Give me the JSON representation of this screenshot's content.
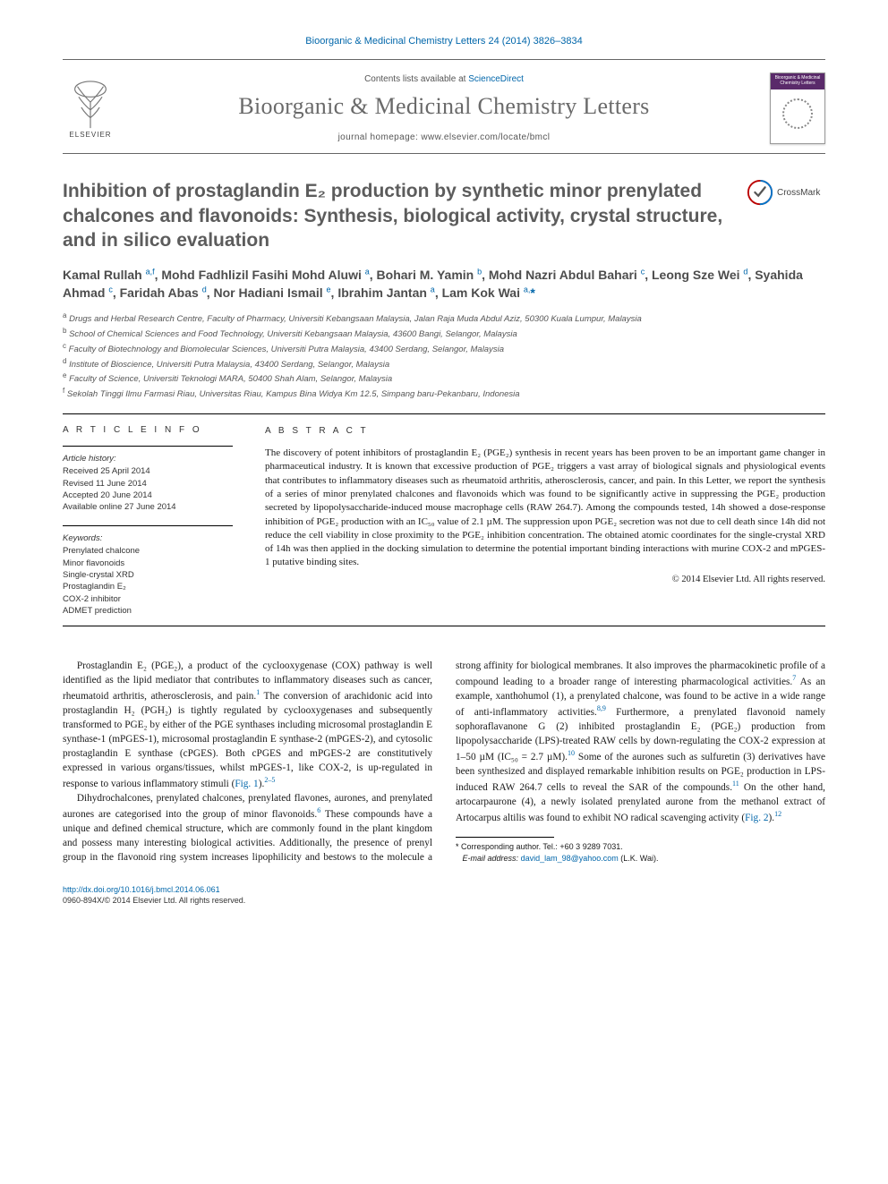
{
  "bibliographic_line": "Bioorganic & Medicinal Chemistry Letters 24 (2014) 3826–3834",
  "header": {
    "contents_prefix": "Contents lists available at ",
    "contents_link": "ScienceDirect",
    "journal_name": "Bioorganic & Medicinal Chemistry Letters",
    "homepage_prefix": "journal homepage: ",
    "homepage_url": "www.elsevier.com/locate/bmcl",
    "publisher_logo_label": "ELSEVIER",
    "cover_label": "Bioorganic & Medicinal Chemistry Letters"
  },
  "crossmark_label": "CrossMark",
  "title": "Inhibition of prostaglandin E₂ production by synthetic minor prenylated chalcones and flavonoids: Synthesis, biological activity, crystal structure, and in silico evaluation",
  "authors_html": "Kamal Rullah <sup>a,f</sup>, Mohd Fadhlizil Fasihi Mohd Aluwi <sup>a</sup>, Bohari M. Yamin <sup>b</sup>, Mohd Nazri Abdul Bahari <sup>c</sup>, Leong Sze Wei <sup>d</sup>, Syahida Ahmad <sup>c</sup>, Faridah Abas <sup>d</sup>, Nor Hadiani Ismail <sup>e</sup>, Ibrahim Jantan <sup>a</sup>, Lam Kok Wai <sup>a,</sup><span class='star'>*</span>",
  "affiliations": [
    {
      "sup": "a",
      "text": "Drugs and Herbal Research Centre, Faculty of Pharmacy, Universiti Kebangsaan Malaysia, Jalan Raja Muda Abdul Aziz, 50300 Kuala Lumpur, Malaysia"
    },
    {
      "sup": "b",
      "text": "School of Chemical Sciences and Food Technology, Universiti Kebangsaan Malaysia, 43600 Bangi, Selangor, Malaysia"
    },
    {
      "sup": "c",
      "text": "Faculty of Biotechnology and Biomolecular Sciences, Universiti Putra Malaysia, 43400 Serdang, Selangor, Malaysia"
    },
    {
      "sup": "d",
      "text": "Institute of Bioscience, Universiti Putra Malaysia, 43400 Serdang, Selangor, Malaysia"
    },
    {
      "sup": "e",
      "text": "Faculty of Science, Universiti Teknologi MARA, 50400 Shah Alam, Selangor, Malaysia"
    },
    {
      "sup": "f",
      "text": "Sekolah Tinggi Ilmu Farmasi Riau, Universitas Riau, Kampus Bina Widya Km 12.5, Simpang baru-Pekanbaru, Indonesia"
    }
  ],
  "article_info": {
    "heading": "A R T I C L E   I N F O",
    "history_label": "Article history:",
    "history": [
      "Received 25 April 2014",
      "Revised 11 June 2014",
      "Accepted 20 June 2014",
      "Available online 27 June 2014"
    ],
    "keywords_label": "Keywords:",
    "keywords": [
      "Prenylated chalcone",
      "Minor flavonoids",
      "Single-crystal XRD",
      "Prostaglandin E₂",
      "COX-2 inhibitor",
      "ADMET prediction"
    ]
  },
  "abstract": {
    "heading": "A B S T R A C T",
    "text": "The discovery of potent inhibitors of prostaglandin E₂ (PGE₂) synthesis in recent years has been proven to be an important game changer in pharmaceutical industry. It is known that excessive production of PGE₂ triggers a vast array of biological signals and physiological events that contributes to inflammatory diseases such as rheumatoid arthritis, atherosclerosis, cancer, and pain. In this Letter, we report the synthesis of a series of minor prenylated chalcones and flavonoids which was found to be significantly active in suppressing the PGE₂ production secreted by lipopolysaccharide-induced mouse macrophage cells (RAW 264.7). Among the compounds tested, 14h showed a dose-response inhibition of PGE₂ production with an IC₅₀ value of 2.1 µM. The suppression upon PGE₂ secretion was not due to cell death since 14h did not reduce the cell viability in close proximity to the PGE₂ inhibition concentration. The obtained atomic coordinates for the single-crystal XRD of 14h was then applied in the docking simulation to determine the potential important binding interactions with murine COX-2 and mPGES-1 putative binding sites.",
    "copyright": "© 2014 Elsevier Ltd. All rights reserved."
  },
  "body": {
    "p1_a": "Prostaglandin E₂ (PGE₂), a product of the cyclooxygenase (COX) pathway is well identified as the lipid mediator that contributes to inflammatory diseases such as cancer, rheumatoid arthritis, atherosclerosis, and pain.",
    "p1_ref1": "1",
    "p1_b": " The conversion of arachidonic acid into prostaglandin H₂ (PGH₂) is tightly regulated by cyclooxygenases and subsequently transformed to PGE₂ by either of the PGE synthases including microsomal prostaglandin E synthase-1 (mPGES-1), microsomal prostaglandin E synthase-2 (mPGES-2), and cytosolic prostaglandin E synthase (cPGES). Both cPGES and mPGES-2 are constitutively expressed in various organs/tissues, whilst mPGES-1, like COX-2, is up-regulated in response to various inflammatory stimuli (",
    "p1_fig": "Fig. 1",
    "p1_c": ").",
    "p1_ref2": "2–5",
    "p2_a": "Dihydrochalcones, prenylated chalcones, prenylated flavones, aurones, and prenylated aurones are categorised into the group of minor flavonoids.",
    "p2_ref6": "6",
    "p2_b_pre": " These compounds have a unique and defined chemical structure, which are commonly found in the plant king",
    "p2_b_post": "dom and possess many interesting biological activities. Additionally, the presence of prenyl group in the flavonoid ring system increases lipophilicity and bestows to the molecule a strong affinity for biological membranes. It also improves the pharmacokinetic profile of a compound leading to a broader range of interesting pharmacological activities.",
    "p2_ref7": "7",
    "p2_c": " As an example, xanthohumol (1), a prenylated chalcone, was found to be active in a wide range of anti-inflammatory activities.",
    "p2_ref89": "8,9",
    "p2_d": " Furthermore, a prenylated flavonoid namely sophoraflavanone G (2) inhibited prostaglandin E₂ (PGE₂) production from lipopolysaccharide (LPS)-treated RAW cells by down-regulating the COX-2 expression at 1–50 µM (IC₅₀ = 2.7 µM).",
    "p2_ref10": "10",
    "p2_e": " Some of the aurones such as sulfuretin (3) derivatives have been synthesized and displayed remarkable inhibition results on PGE₂ production in LPS-induced RAW 264.7 cells to reveal the SAR of the compounds.",
    "p2_ref11": "11",
    "p2_f": " On the other hand, artocarpaurone (4), a newly isolated prenylated aurone from the methanol extract of Artocarpus altilis was found to exhibit NO radical scavenging activity (",
    "p2_fig2": "Fig. 2",
    "p2_g": ").",
    "p2_ref12": "12"
  },
  "footnote": {
    "corr_label": "Corresponding author. Tel.: +60 3 9289 7031.",
    "email_label": "E-mail address:",
    "email": "david_lam_98@yahoo.com",
    "email_who": "(L.K. Wai)."
  },
  "doi": {
    "url": "http://dx.doi.org/10.1016/j.bmcl.2014.06.061",
    "issn_line": "0960-894X/© 2014 Elsevier Ltd. All rights reserved."
  },
  "colors": {
    "link": "#0066aa",
    "heading_gray": "#5c5c5c",
    "rule": "#000000",
    "cover_band": "#5a2a6a"
  }
}
